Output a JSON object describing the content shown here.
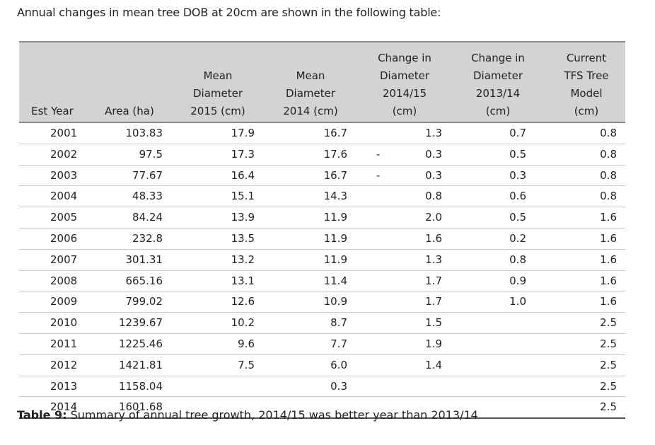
{
  "intro": "Annual changes in mean tree DOB at 20cm are shown in the following table:",
  "headers": [
    "Est Year",
    "Area (ha)",
    "Mean\nDiameter\n2015 (cm)",
    "Mean\nDiameter\n2014 (cm)",
    "Change in\nDiameter\n2014/15\n(cm)",
    "Change in\nDiameter\n2013/14\n(cm)",
    "Current\nTFS Tree\nModel\n(cm)"
  ],
  "rows": [
    {
      "year": "2001",
      "area": "103.83",
      "d2015": "17.9",
      "d2014": "16.7",
      "neg": "",
      "ch1415": "1.3",
      "ch1314": "0.7",
      "model": "0.8"
    },
    {
      "year": "2002",
      "area": "97.5",
      "d2015": "17.3",
      "d2014": "17.6",
      "neg": "-",
      "ch1415": "0.3",
      "ch1314": "0.5",
      "model": "0.8"
    },
    {
      "year": "2003",
      "area": "77.67",
      "d2015": "16.4",
      "d2014": "16.7",
      "neg": "-",
      "ch1415": "0.3",
      "ch1314": "0.3",
      "model": "0.8"
    },
    {
      "year": "2004",
      "area": "48.33",
      "d2015": "15.1",
      "d2014": "14.3",
      "neg": "",
      "ch1415": "0.8",
      "ch1314": "0.6",
      "model": "0.8"
    },
    {
      "year": "2005",
      "area": "84.24",
      "d2015": "13.9",
      "d2014": "11.9",
      "neg": "",
      "ch1415": "2.0",
      "ch1314": "0.5",
      "model": "1.6"
    },
    {
      "year": "2006",
      "area": "232.8",
      "d2015": "13.5",
      "d2014": "11.9",
      "neg": "",
      "ch1415": "1.6",
      "ch1314": "0.2",
      "model": "1.6"
    },
    {
      "year": "2007",
      "area": "301.31",
      "d2015": "13.2",
      "d2014": "11.9",
      "neg": "",
      "ch1415": "1.3",
      "ch1314": "0.8",
      "model": "1.6"
    },
    {
      "year": "2008",
      "area": "665.16",
      "d2015": "13.1",
      "d2014": "11.4",
      "neg": "",
      "ch1415": "1.7",
      "ch1314": "0.9",
      "model": "1.6"
    },
    {
      "year": "2009",
      "area": "799.02",
      "d2015": "12.6",
      "d2014": "10.9",
      "neg": "",
      "ch1415": "1.7",
      "ch1314": "1.0",
      "model": "1.6"
    },
    {
      "year": "2010",
      "area": "1239.67",
      "d2015": "10.2",
      "d2014": "8.7",
      "neg": "",
      "ch1415": "1.5",
      "ch1314": "",
      "model": "2.5"
    },
    {
      "year": "2011",
      "area": "1225.46",
      "d2015": "9.6",
      "d2014": "7.7",
      "neg": "",
      "ch1415": "1.9",
      "ch1314": "",
      "model": "2.5"
    },
    {
      "year": "2012",
      "area": "1421.81",
      "d2015": "7.5",
      "d2014": "6.0",
      "neg": "",
      "ch1415": "1.4",
      "ch1314": "",
      "model": "2.5"
    },
    {
      "year": "2013",
      "area": "1158.04",
      "d2015": "",
      "d2014": "0.3",
      "neg": "",
      "ch1415": "",
      "ch1314": "",
      "model": "2.5"
    },
    {
      "year": "2014",
      "area": "1601.68",
      "d2015": "",
      "d2014": "",
      "neg": "",
      "ch1415": "",
      "ch1314": "",
      "model": "2.5"
    }
  ],
  "caption": {
    "label": "Table 9:",
    "text": " Summary of annual tree growth, 2014/15 was better year than 2013/14"
  }
}
